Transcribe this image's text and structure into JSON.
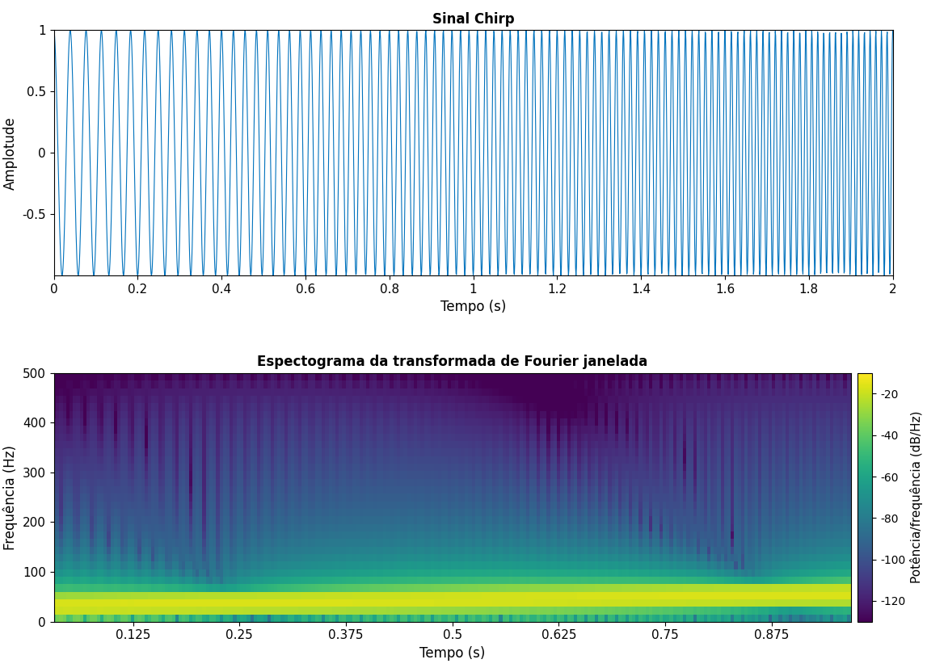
{
  "chart_data": [
    {
      "type": "chirp",
      "title": "Sinal Chirp",
      "x_label": "Tempo (s)",
      "y_label": "Amplotude",
      "sample_rate": 1000,
      "t_range": [
        0,
        2
      ],
      "f0": 25,
      "t1": 2,
      "f1": 75,
      "color": "#0072bd",
      "xlim": [
        0,
        2
      ],
      "xticks": [
        0,
        0.2,
        0.4,
        0.6,
        0.8,
        1,
        1.2,
        1.4,
        1.6,
        1.8,
        2
      ],
      "ylim": [
        -1,
        1
      ],
      "yticks": [
        -0.5,
        0,
        0.5,
        1
      ]
    },
    {
      "type": "spectrogram",
      "title": "Espectograma da transformada de Fourier janelada",
      "x_label": "Tempo (s)",
      "y_label": "Frequência (Hz)",
      "colorbar_label": "Potência/frequência (dB/Hz)",
      "sample_rate": 1000,
      "t_range": [
        0,
        1
      ],
      "f0": 25,
      "t1": 2,
      "f1": 75,
      "window_length": 64,
      "overlap": 60,
      "xlim": [
        0.032,
        0.968
      ],
      "xticks": [
        0.125,
        0.25,
        0.375,
        0.5,
        0.625,
        0.75,
        0.875
      ],
      "ylim": [
        0,
        500
      ],
      "yticks": [
        0,
        100,
        200,
        300,
        400,
        500
      ],
      "color_range": [
        -130,
        -10
      ],
      "color_ticks": [
        -120,
        -100,
        -80,
        -60,
        -40,
        -20
      ]
    }
  ]
}
